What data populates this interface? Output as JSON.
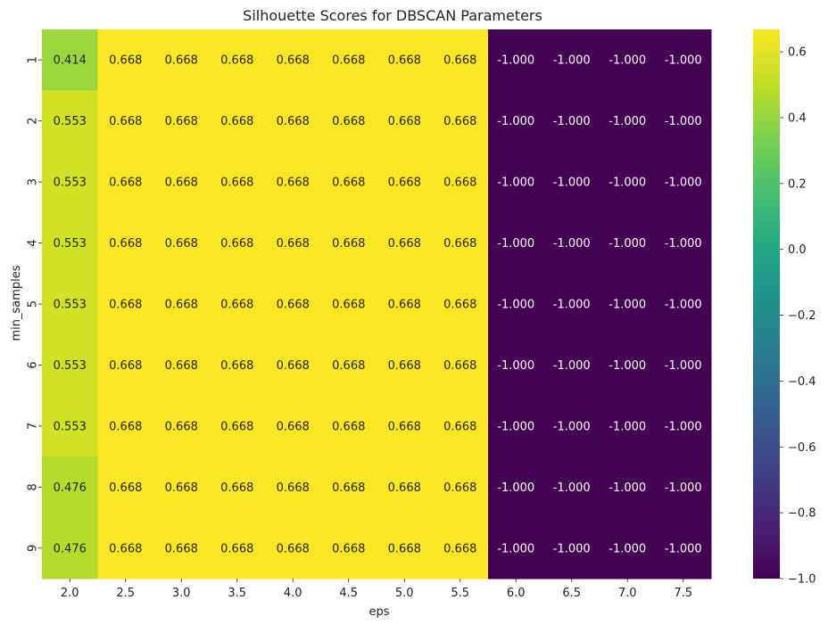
{
  "chart_data": {
    "type": "heatmap",
    "title": "Silhouette Scores for DBSCAN Parameters",
    "xlabel": "eps",
    "ylabel": "min_samples",
    "x_categories": [
      "2.0",
      "2.5",
      "3.0",
      "3.5",
      "4.0",
      "4.5",
      "5.0",
      "5.5",
      "6.0",
      "6.5",
      "7.0",
      "7.5"
    ],
    "y_categories": [
      "1",
      "2",
      "3",
      "4",
      "5",
      "6",
      "7",
      "8",
      "9"
    ],
    "values": [
      [
        0.414,
        0.668,
        0.668,
        0.668,
        0.668,
        0.668,
        0.668,
        0.668,
        -1.0,
        -1.0,
        -1.0,
        -1.0
      ],
      [
        0.553,
        0.668,
        0.668,
        0.668,
        0.668,
        0.668,
        0.668,
        0.668,
        -1.0,
        -1.0,
        -1.0,
        -1.0
      ],
      [
        0.553,
        0.668,
        0.668,
        0.668,
        0.668,
        0.668,
        0.668,
        0.668,
        -1.0,
        -1.0,
        -1.0,
        -1.0
      ],
      [
        0.553,
        0.668,
        0.668,
        0.668,
        0.668,
        0.668,
        0.668,
        0.668,
        -1.0,
        -1.0,
        -1.0,
        -1.0
      ],
      [
        0.553,
        0.668,
        0.668,
        0.668,
        0.668,
        0.668,
        0.668,
        0.668,
        -1.0,
        -1.0,
        -1.0,
        -1.0
      ],
      [
        0.553,
        0.668,
        0.668,
        0.668,
        0.668,
        0.668,
        0.668,
        0.668,
        -1.0,
        -1.0,
        -1.0,
        -1.0
      ],
      [
        0.553,
        0.668,
        0.668,
        0.668,
        0.668,
        0.668,
        0.668,
        0.668,
        -1.0,
        -1.0,
        -1.0,
        -1.0
      ],
      [
        0.476,
        0.668,
        0.668,
        0.668,
        0.668,
        0.668,
        0.668,
        0.668,
        -1.0,
        -1.0,
        -1.0,
        -1.0
      ],
      [
        0.476,
        0.668,
        0.668,
        0.668,
        0.668,
        0.668,
        0.668,
        0.668,
        -1.0,
        -1.0,
        -1.0,
        -1.0
      ]
    ],
    "value_format_decimals": 3,
    "colormap": "viridis",
    "colorbar": {
      "vmin": -1.0,
      "vmax": 0.668,
      "ticks": [
        0.6,
        0.4,
        0.2,
        0.0,
        -0.2,
        -0.4,
        -0.6,
        -0.8,
        -1.0
      ],
      "tick_labels": [
        "0.6",
        "0.4",
        "0.2",
        "0.0",
        "−0.2",
        "−0.4",
        "−0.6",
        "−0.8",
        "−1.0"
      ]
    },
    "grid": false
  }
}
